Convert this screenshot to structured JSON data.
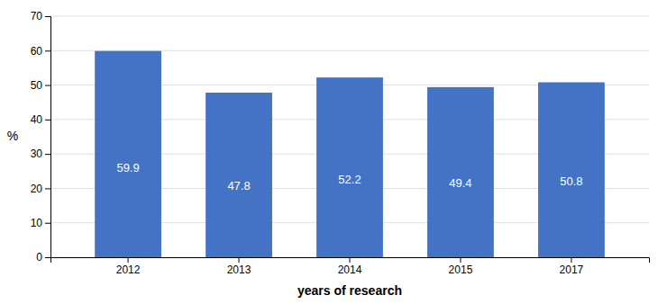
{
  "chart_data": {
    "type": "bar",
    "categories": [
      "2012",
      "2013",
      "2014",
      "2015",
      "2017"
    ],
    "values": [
      59.9,
      47.8,
      52.2,
      49.4,
      50.8
    ],
    "color": "#4472C4",
    "xlabel": "years of research",
    "ylabel": "%",
    "ylim": [
      0,
      70
    ],
    "yticks": [
      0,
      10,
      20,
      30,
      40,
      50,
      60,
      70
    ],
    "grid": true,
    "data_labels": true
  }
}
